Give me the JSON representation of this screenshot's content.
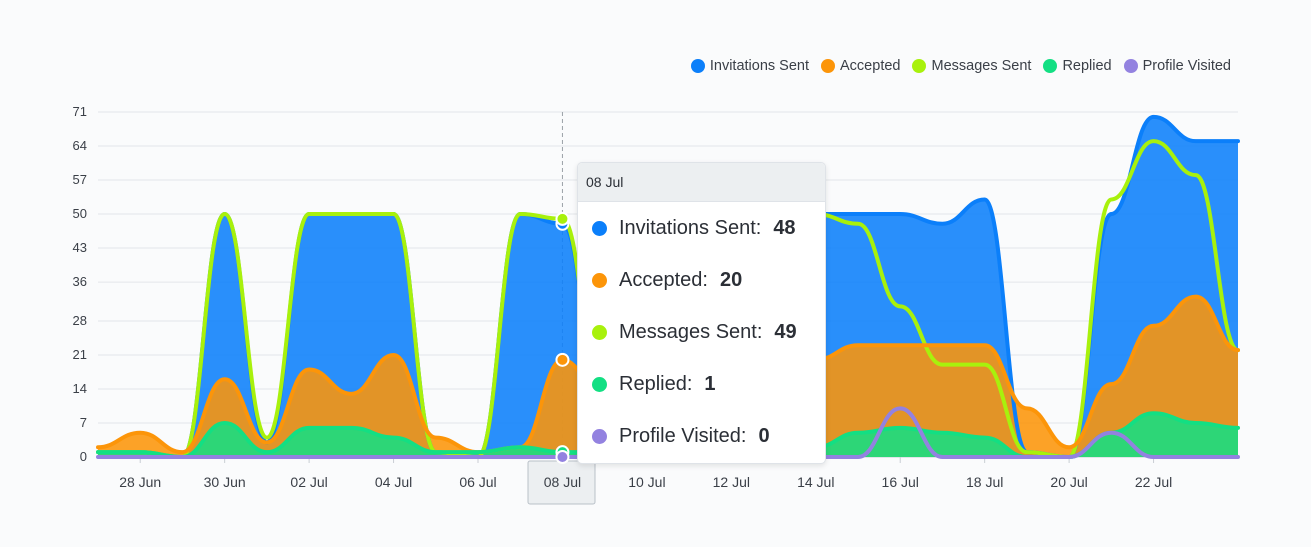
{
  "legend": [
    {
      "name": "Invitations Sent",
      "color": "#0b7ffa"
    },
    {
      "name": "Accepted",
      "color": "#fc9509"
    },
    {
      "name": "Messages Sent",
      "color": "#a8f10c"
    },
    {
      "name": "Replied",
      "color": "#13df83"
    },
    {
      "name": "Profile Visited",
      "color": "#9382e0"
    }
  ],
  "tooltip": {
    "date": "08 Jul",
    "rows": [
      {
        "label": "Invitations Sent:",
        "value": "48",
        "color": "#0b7ffa"
      },
      {
        "label": "Accepted:",
        "value": "20",
        "color": "#fc9509"
      },
      {
        "label": "Messages Sent:",
        "value": "49",
        "color": "#a8f10c"
      },
      {
        "label": "Replied:",
        "value": "1",
        "color": "#13df83"
      },
      {
        "label": "Profile Visited:",
        "value": "0",
        "color": "#9382e0"
      }
    ]
  },
  "chart_data": {
    "type": "area",
    "x": [
      "27 Jun",
      "28 Jun",
      "29 Jun",
      "30 Jun",
      "01 Jul",
      "02 Jul",
      "03 Jul",
      "04 Jul",
      "05 Jul",
      "06 Jul",
      "07 Jul",
      "08 Jul",
      "09 Jul",
      "10 Jul",
      "11 Jul",
      "12 Jul",
      "13 Jul",
      "14 Jul",
      "15 Jul",
      "16 Jul",
      "17 Jul",
      "18 Jul",
      "19 Jul",
      "20 Jul",
      "21 Jul",
      "22 Jul",
      "23 Jul",
      "24 Jul"
    ],
    "xticks": [
      "28 Jun",
      "30 Jun",
      "02 Jul",
      "04 Jul",
      "06 Jul",
      "08 Jul",
      "10 Jul",
      "12 Jul",
      "14 Jul",
      "16 Jul",
      "18 Jul",
      "20 Jul",
      "22 Jul"
    ],
    "yticks": [
      0,
      7,
      14,
      21,
      28,
      36,
      43,
      50,
      57,
      64,
      71
    ],
    "ylim": [
      0,
      71
    ],
    "highlighted_x": "08 Jul",
    "grid": true,
    "legend_position": "top-right",
    "series": [
      {
        "name": "Invitations Sent",
        "color": "#0b7ffa",
        "values": [
          1,
          1,
          0,
          50,
          3,
          50,
          50,
          50,
          1,
          0,
          50,
          48,
          8,
          50,
          22,
          5,
          50,
          50,
          50,
          50,
          48,
          53,
          1,
          0,
          50,
          70,
          65,
          65
        ]
      },
      {
        "name": "Accepted",
        "color": "#fc9509",
        "values": [
          2,
          5,
          1,
          16,
          3,
          18,
          13,
          21,
          4,
          1,
          2,
          20,
          12,
          13,
          10,
          5,
          15,
          20,
          23,
          23,
          23,
          23,
          10,
          2,
          15,
          27,
          33,
          22
        ]
      },
      {
        "name": "Messages Sent",
        "color": "#a8f10c",
        "values": [
          1,
          1,
          0,
          50,
          4,
          50,
          50,
          50,
          1,
          0,
          50,
          49,
          8,
          50,
          22,
          5,
          50,
          50,
          48,
          31,
          19,
          19,
          1,
          0,
          53,
          65,
          58,
          22
        ]
      },
      {
        "name": "Replied",
        "color": "#13df83",
        "values": [
          1,
          1,
          0,
          7,
          1,
          6,
          6,
          4,
          1,
          1,
          2,
          1,
          1,
          2,
          1,
          1,
          2,
          2,
          5,
          6,
          5,
          4,
          0,
          0,
          5,
          9,
          7,
          6
        ]
      },
      {
        "name": "Profile Visited",
        "color": "#9382e0",
        "values": [
          0,
          0,
          0,
          0,
          0,
          0,
          0,
          0,
          0,
          0,
          0,
          0,
          0,
          0,
          0,
          0,
          0,
          0,
          0,
          10,
          0,
          0,
          0,
          0,
          5,
          0,
          0,
          0
        ]
      }
    ]
  }
}
